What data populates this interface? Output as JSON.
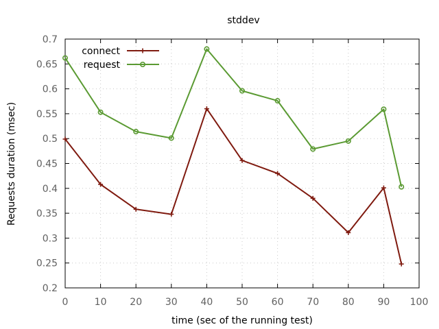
{
  "chart_data": {
    "type": "line",
    "title": "stddev",
    "xlabel": "time (sec of the running test)",
    "ylabel": "Requests duration (msec)",
    "xlim": [
      0,
      100
    ],
    "ylim": [
      0.2,
      0.7
    ],
    "xticks": [
      0,
      10,
      20,
      30,
      40,
      50,
      60,
      70,
      80,
      90,
      100
    ],
    "yticks": [
      0.2,
      0.25,
      0.3,
      0.35,
      0.4,
      0.45,
      0.5,
      0.55,
      0.6,
      0.65,
      0.7
    ],
    "xtick_labels": [
      "0",
      "10",
      "20",
      "30",
      "40",
      "50",
      "60",
      "70",
      "80",
      "90",
      "100"
    ],
    "ytick_labels": [
      "0.2",
      "0.25",
      "0.3",
      "0.35",
      "0.4",
      "0.45",
      "0.5",
      "0.55",
      "0.6",
      "0.65",
      "0.7"
    ],
    "grid": true,
    "legend_position": "top-left",
    "x": [
      0,
      10,
      20,
      30,
      40,
      50,
      60,
      70,
      80,
      90,
      95
    ],
    "series": [
      {
        "name": "connect",
        "color": "#7f1a0f",
        "marker": "plus",
        "values": [
          0.499,
          0.408,
          0.358,
          0.348,
          0.56,
          0.456,
          0.43,
          0.38,
          0.311,
          0.401,
          0.248
        ]
      },
      {
        "name": "request",
        "color": "#5a9a32",
        "marker": "circle",
        "values": [
          0.662,
          0.553,
          0.514,
          0.501,
          0.68,
          0.596,
          0.576,
          0.479,
          0.495,
          0.559,
          0.403
        ]
      }
    ]
  }
}
